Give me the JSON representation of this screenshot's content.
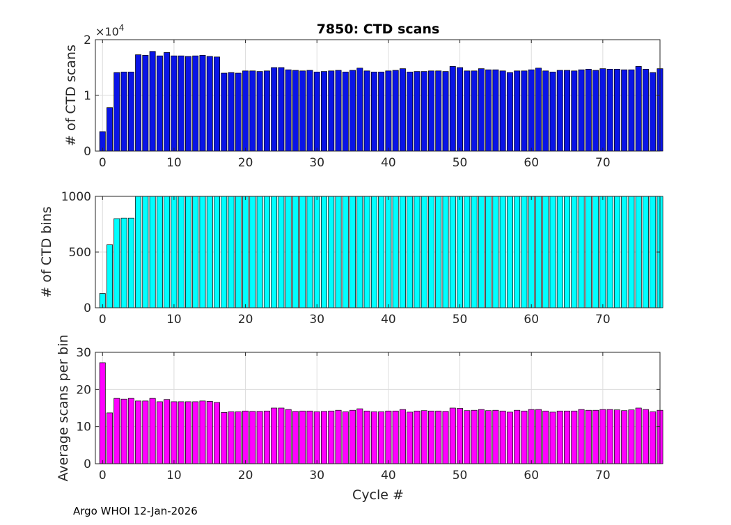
{
  "footer": {
    "text": "Argo WHOI 12-Jan-2026"
  },
  "colors": {
    "scans_bar": "#0a14e6",
    "bins_bar": "#00ffff",
    "avg_bar": "#ff00ff",
    "grid": "#dcdcdc",
    "axis": "#262626"
  },
  "chart_data": [
    {
      "type": "bar",
      "title": "7850: CTD scans",
      "xlabel": "",
      "ylabel": "# of CTD scans",
      "y_multiplier_label": "×10",
      "y_multiplier_exponent": "4",
      "xlim": [
        -1,
        78
      ],
      "ylim": [
        0,
        2
      ],
      "xticks": [
        0,
        10,
        20,
        30,
        40,
        50,
        60,
        70
      ],
      "yticks": [
        0,
        1,
        2
      ],
      "x_start": 0,
      "values": [
        0.35,
        0.78,
        1.41,
        1.42,
        1.42,
        1.73,
        1.72,
        1.79,
        1.71,
        1.77,
        1.71,
        1.71,
        1.7,
        1.71,
        1.72,
        1.7,
        1.69,
        1.4,
        1.41,
        1.4,
        1.44,
        1.44,
        1.43,
        1.44,
        1.5,
        1.5,
        1.46,
        1.45,
        1.44,
        1.45,
        1.42,
        1.43,
        1.44,
        1.45,
        1.42,
        1.45,
        1.49,
        1.44,
        1.42,
        1.42,
        1.44,
        1.45,
        1.48,
        1.42,
        1.43,
        1.43,
        1.44,
        1.44,
        1.43,
        1.52,
        1.5,
        1.44,
        1.44,
        1.48,
        1.46,
        1.46,
        1.44,
        1.41,
        1.44,
        1.44,
        1.46,
        1.49,
        1.44,
        1.42,
        1.45,
        1.45,
        1.44,
        1.46,
        1.47,
        1.45,
        1.48,
        1.47,
        1.47,
        1.46,
        1.46,
        1.52,
        1.47,
        1.41,
        1.48
      ]
    },
    {
      "type": "bar",
      "title": "",
      "xlabel": "",
      "ylabel": "# of CTD bins",
      "xlim": [
        -1,
        78
      ],
      "ylim": [
        0,
        1000
      ],
      "xticks": [
        0,
        10,
        20,
        30,
        40,
        50,
        60,
        70
      ],
      "yticks": [
        0,
        500,
        1000
      ],
      "x_start": 0,
      "values": [
        128,
        565,
        800,
        805,
        805,
        1010,
        1010,
        1010,
        1010,
        1010,
        1010,
        1010,
        1010,
        1010,
        1010,
        1010,
        1010,
        1010,
        1010,
        1008,
        1008,
        1010,
        1010,
        1010,
        1010,
        1010,
        1010,
        1010,
        1010,
        1010,
        1008,
        1010,
        1010,
        1010,
        1010,
        1010,
        1010,
        1010,
        1010,
        1010,
        1010,
        1010,
        1010,
        1010,
        1010,
        1010,
        1010,
        1010,
        1010,
        1010,
        1010,
        1010,
        1010,
        1010,
        1010,
        1010,
        1010,
        1010,
        1010,
        1010,
        1010,
        1010,
        1010,
        1010,
        1010,
        1010,
        1010,
        1010,
        1010,
        1010,
        1010,
        1010,
        1010,
        1010,
        1010,
        1010,
        1010,
        1010,
        1010
      ]
    },
    {
      "type": "bar",
      "title": "",
      "xlabel": "Cycle #",
      "ylabel": "Average scans per bin",
      "xlim": [
        -1,
        78
      ],
      "ylim": [
        0,
        30
      ],
      "xticks": [
        0,
        10,
        20,
        30,
        40,
        50,
        60,
        70
      ],
      "yticks": [
        0,
        10,
        20,
        30
      ],
      "x_start": 0,
      "values": [
        27.2,
        13.7,
        17.6,
        17.4,
        17.6,
        16.9,
        16.9,
        17.6,
        16.7,
        17.3,
        16.7,
        16.7,
        16.7,
        16.7,
        16.9,
        16.8,
        16.5,
        13.8,
        14.0,
        14.0,
        14.2,
        14.1,
        14.1,
        14.2,
        15.0,
        15.0,
        14.6,
        14.1,
        14.2,
        14.2,
        14.0,
        14.1,
        14.2,
        14.4,
        14.0,
        14.4,
        14.8,
        14.2,
        14.0,
        14.0,
        14.2,
        14.2,
        14.6,
        13.9,
        14.2,
        14.3,
        14.2,
        14.2,
        14.1,
        15.0,
        14.9,
        14.3,
        14.4,
        14.6,
        14.3,
        14.4,
        14.2,
        13.9,
        14.4,
        14.2,
        14.6,
        14.6,
        14.2,
        13.9,
        14.2,
        14.2,
        14.2,
        14.6,
        14.4,
        14.4,
        14.6,
        14.6,
        14.5,
        14.3,
        14.5,
        15.0,
        14.6,
        14.0,
        14.4
      ]
    }
  ]
}
